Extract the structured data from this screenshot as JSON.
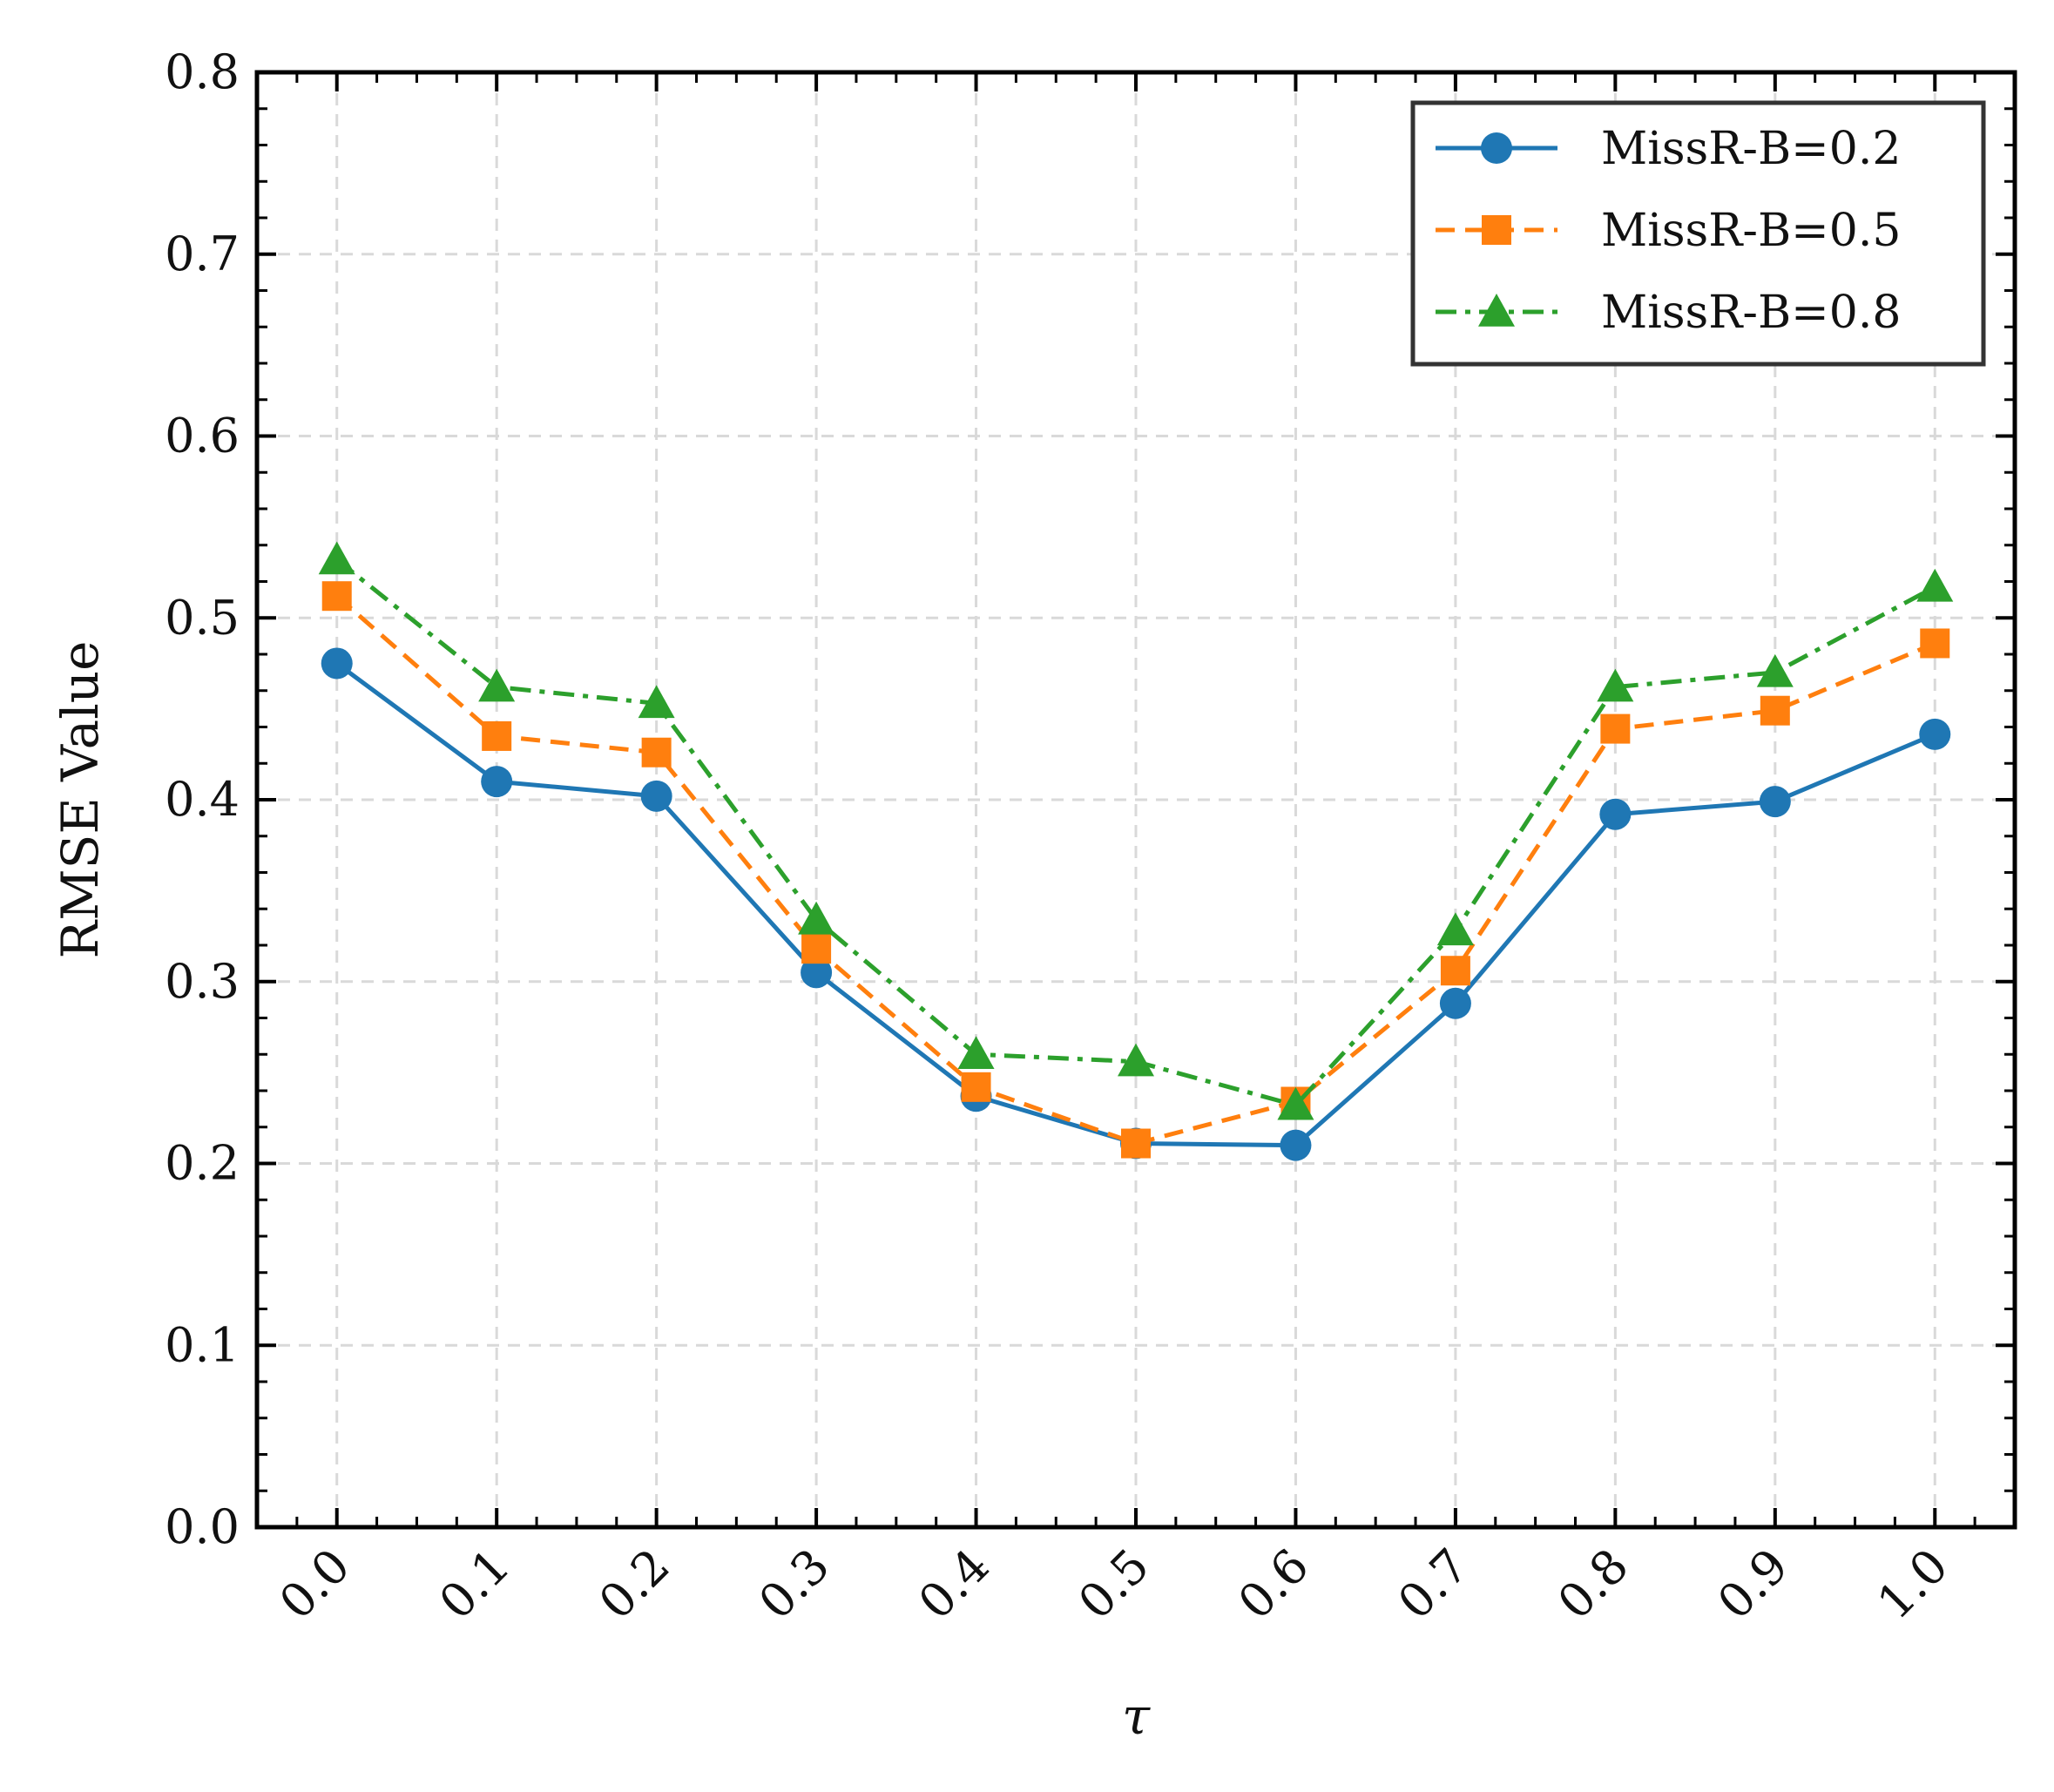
{
  "chart_data": {
    "type": "line",
    "title": "",
    "xlabel": "τ",
    "ylabel": "RMSE Value",
    "x": [
      0.0,
      0.1,
      0.2,
      0.3,
      0.4,
      0.5,
      0.6,
      0.7,
      0.8,
      0.9,
      1.0
    ],
    "x_tick_labels": [
      "0.0",
      "0.1",
      "0.2",
      "0.3",
      "0.4",
      "0.5",
      "0.6",
      "0.7",
      "0.8",
      "0.9",
      "1.0"
    ],
    "y_tick_labels": [
      "0.0",
      "0.1",
      "0.2",
      "0.3",
      "0.4",
      "0.5",
      "0.6",
      "0.7",
      "0.8"
    ],
    "ylim": [
      0.0,
      0.8
    ],
    "xlim": [
      -0.05,
      1.05
    ],
    "grid": true,
    "legend_position": "top-right",
    "series": [
      {
        "name": "MissR-B=0.2",
        "color": "#1f77b4",
        "line_style": "solid",
        "marker": "circle",
        "values": [
          0.475,
          0.41,
          0.402,
          0.305,
          0.237,
          0.211,
          0.21,
          0.288,
          0.392,
          0.399,
          0.436
        ]
      },
      {
        "name": "MissR-B=0.5",
        "color": "#ff7f0e",
        "line_style": "dashed",
        "marker": "square",
        "values": [
          0.512,
          0.435,
          0.426,
          0.318,
          0.242,
          0.211,
          0.234,
          0.306,
          0.439,
          0.449,
          0.486
        ]
      },
      {
        "name": "MissR-B=0.8",
        "color": "#2ca02c",
        "line_style": "dashdot",
        "marker": "triangle",
        "values": [
          0.532,
          0.462,
          0.453,
          0.334,
          0.26,
          0.256,
          0.232,
          0.328,
          0.462,
          0.47,
          0.517
        ]
      }
    ]
  }
}
